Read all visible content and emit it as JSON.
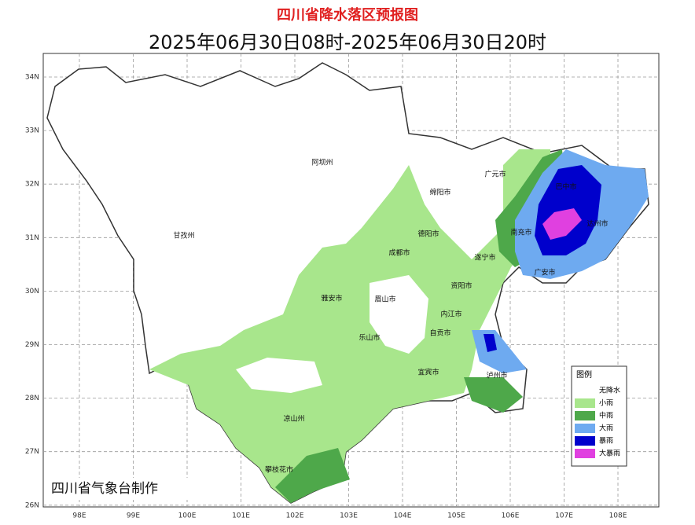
{
  "title": "四川省降水落区预报图",
  "subtitle": "2025年06月30日08时-2025年06月30日20时",
  "map": {
    "lat_labels": [
      "34N",
      "33N",
      "32N",
      "31N",
      "30N",
      "29N",
      "28N",
      "27N",
      "26N"
    ],
    "lon_labels": [
      "98E",
      "99E",
      "100E",
      "101E",
      "102E",
      "103E",
      "104E",
      "105E",
      "106E",
      "107E",
      "108E"
    ],
    "cities": [
      "阿坝州",
      "甘孜州",
      "广元市",
      "绵阳市",
      "巴中市",
      "德阳市",
      "南充市",
      "达州市",
      "成都市",
      "遂宁市",
      "广安市",
      "雅安市",
      "眉山市",
      "资阳市",
      "内江市",
      "乐山市",
      "自贡市",
      "宜宾市",
      "泸州市",
      "凉山州",
      "攀枝花市"
    ]
  },
  "legend": {
    "title": "图例",
    "items": [
      {
        "label": "无降水",
        "color": "#ffffff"
      },
      {
        "label": "小雨",
        "color": "#a8e68c"
      },
      {
        "label": "中雨",
        "color": "#4ea84a"
      },
      {
        "label": "大雨",
        "color": "#6eaaf0"
      },
      {
        "label": "暴雨",
        "color": "#0000cc"
      },
      {
        "label": "大暴雨",
        "color": "#e040e0"
      }
    ]
  },
  "credit": "四川省气象台制作"
}
